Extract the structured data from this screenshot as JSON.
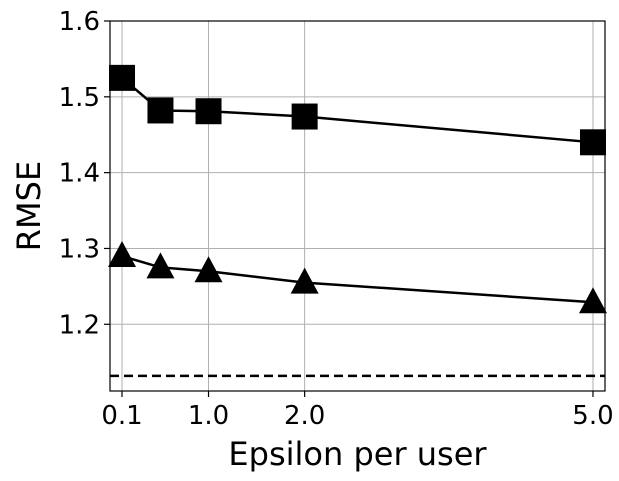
{
  "chart_data": {
    "type": "line",
    "title": "",
    "xlabel": "Epsilon per user",
    "ylabel": "RMSE",
    "xlim": [
      -0.025,
      5.125
    ],
    "ylim": [
      1.112,
      1.6
    ],
    "xticks": [
      0.1,
      1.0,
      2.0,
      5.0
    ],
    "xtick_labels": [
      "0.1",
      "1.0",
      "2.0",
      "5.0"
    ],
    "yticks": [
      1.2,
      1.3,
      1.4,
      1.5,
      1.6
    ],
    "ytick_labels": [
      "1.2",
      "1.3",
      "1.4",
      "1.5",
      "1.6"
    ],
    "grid": true,
    "legend": "none",
    "series": [
      {
        "marker": "square",
        "color": "#000000",
        "x": [
          0.1,
          0.5,
          1.0,
          2.0,
          5.0
        ],
        "y": [
          1.525,
          1.482,
          1.481,
          1.474,
          1.44
        ]
      },
      {
        "marker": "triangle",
        "color": "#000000",
        "x": [
          0.1,
          0.5,
          1.0,
          2.0,
          5.0
        ],
        "y": [
          1.29,
          1.275,
          1.27,
          1.255,
          1.229
        ]
      }
    ],
    "reference_lines": [
      {
        "y": 1.132,
        "style": "dashed",
        "color": "#000000"
      }
    ]
  }
}
